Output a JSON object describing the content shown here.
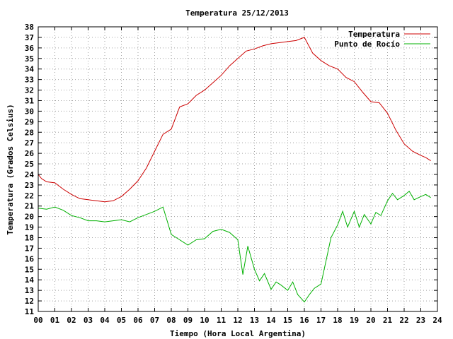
{
  "chart_data": {
    "type": "line",
    "title": "Temperatura 25/12/2013",
    "xlabel": "Tiempo (Hora Local Argentina)",
    "ylabel": "Temperatura (Grados Celsius)",
    "xlim": [
      0,
      24
    ],
    "ylim": [
      11,
      38
    ],
    "x_ticks": [
      0,
      1,
      2,
      3,
      4,
      5,
      6,
      7,
      8,
      9,
      10,
      11,
      12,
      13,
      14,
      15,
      16,
      17,
      18,
      19,
      20,
      21,
      22,
      23,
      24
    ],
    "x_tick_labels": [
      "00",
      "01",
      "02",
      "03",
      "04",
      "05",
      "06",
      "07",
      "08",
      "09",
      "10",
      "11",
      "12",
      "13",
      "14",
      "15",
      "16",
      "17",
      "18",
      "19",
      "20",
      "21",
      "22",
      "23",
      "24"
    ],
    "y_ticks": [
      11,
      12,
      13,
      14,
      15,
      16,
      17,
      18,
      19,
      20,
      21,
      22,
      23,
      24,
      25,
      26,
      27,
      28,
      29,
      30,
      31,
      32,
      33,
      34,
      35,
      36,
      37,
      38
    ],
    "grid": true,
    "legend_position": "top-right",
    "series": [
      {
        "name": "Temperatura",
        "color": "#cc0000",
        "x": [
          0,
          0.2,
          0.5,
          1,
          1.5,
          2,
          2.5,
          3,
          3.5,
          4,
          4.5,
          5,
          5.5,
          6,
          6.5,
          7,
          7.5,
          8,
          8.5,
          9,
          9.5,
          10,
          10.5,
          11,
          11.5,
          12,
          12.5,
          13,
          13.5,
          14,
          14.5,
          15,
          15.5,
          16,
          16.5,
          17,
          17.5,
          18,
          18.5,
          19,
          19.5,
          20,
          20.5,
          21,
          21.5,
          22,
          22.5,
          23,
          23.3,
          23.6
        ],
        "values": [
          24.0,
          23.6,
          23.3,
          23.2,
          22.6,
          22.1,
          21.7,
          21.6,
          21.5,
          21.4,
          21.5,
          21.9,
          22.6,
          23.4,
          24.6,
          26.2,
          27.8,
          28.3,
          30.4,
          30.7,
          31.5,
          32.0,
          32.7,
          33.4,
          34.3,
          35.0,
          35.7,
          35.9,
          36.2,
          36.4,
          36.5,
          36.6,
          36.7,
          37.0,
          35.5,
          34.8,
          34.3,
          34.0,
          33.2,
          32.8,
          31.8,
          30.9,
          30.8,
          29.8,
          28.2,
          26.9,
          26.2,
          25.8,
          25.6,
          25.3
        ]
      },
      {
        "name": "Punto de Rocío",
        "color": "#00b000",
        "x": [
          0,
          0.5,
          1,
          1.5,
          2,
          2.5,
          3,
          3.5,
          4,
          4.5,
          5,
          5.5,
          6,
          6.5,
          7,
          7.5,
          8,
          8.5,
          9,
          9.5,
          10,
          10.5,
          11,
          11.5,
          12,
          12.3,
          12.6,
          13,
          13.3,
          13.6,
          14,
          14.3,
          14.6,
          15,
          15.3,
          15.6,
          16,
          16.3,
          16.6,
          17,
          17.3,
          17.6,
          18,
          18.3,
          18.6,
          19,
          19.3,
          19.6,
          20,
          20.3,
          20.6,
          21,
          21.3,
          21.6,
          22,
          22.3,
          22.6,
          23,
          23.3,
          23.6
        ],
        "values": [
          20.8,
          20.7,
          20.9,
          20.6,
          20.1,
          19.9,
          19.6,
          19.6,
          19.5,
          19.6,
          19.7,
          19.5,
          19.9,
          20.2,
          20.5,
          20.9,
          18.3,
          17.8,
          17.3,
          17.8,
          17.9,
          18.6,
          18.8,
          18.5,
          17.8,
          14.5,
          17.2,
          15.0,
          13.9,
          14.6,
          13.1,
          13.8,
          13.5,
          13.0,
          13.8,
          12.6,
          11.9,
          12.6,
          13.2,
          13.6,
          15.8,
          18.0,
          19.2,
          20.5,
          19.0,
          20.5,
          19.0,
          20.2,
          19.3,
          20.4,
          20.1,
          21.5,
          22.2,
          21.6,
          22.0,
          22.4,
          21.6,
          21.9,
          22.1,
          21.8
        ]
      }
    ]
  }
}
